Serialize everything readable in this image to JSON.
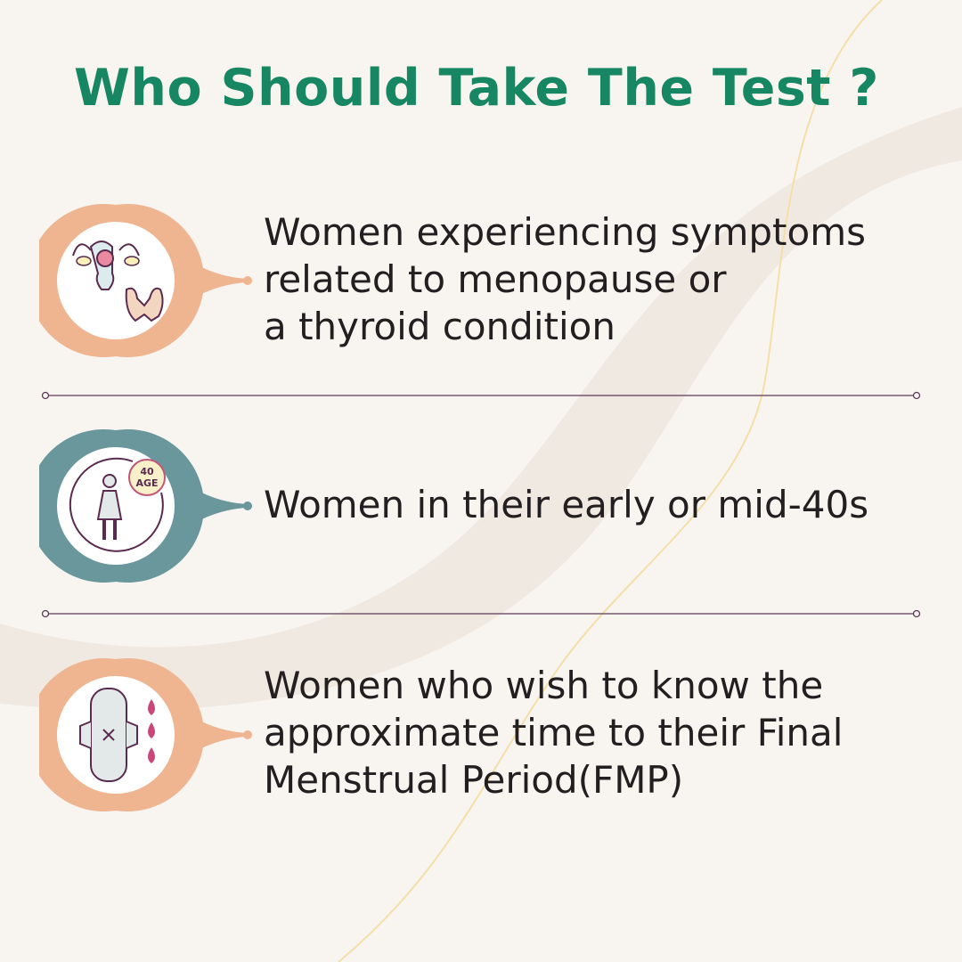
{
  "title": "Who Should Take The Test ?",
  "items": [
    {
      "text": "Women experiencing symptoms\nrelated to menopause or\na thyroid condition",
      "icon": "uterus-thyroid-icon",
      "color": "#efb590"
    },
    {
      "text": "Women in their early or mid-40s",
      "icon": "woman-age-40-icon",
      "age_badge": [
        "40",
        "AGE"
      ],
      "color": "#6a979c"
    },
    {
      "text": "Women who wish to know the\napproximate time to their Final\nMenstrual Period(FMP)",
      "icon": "sanitary-pad-drops-icon",
      "color": "#efb590"
    }
  ],
  "colors": {
    "background": "#f8f4f0",
    "title": "#178763",
    "divider": "#5b3a57"
  }
}
